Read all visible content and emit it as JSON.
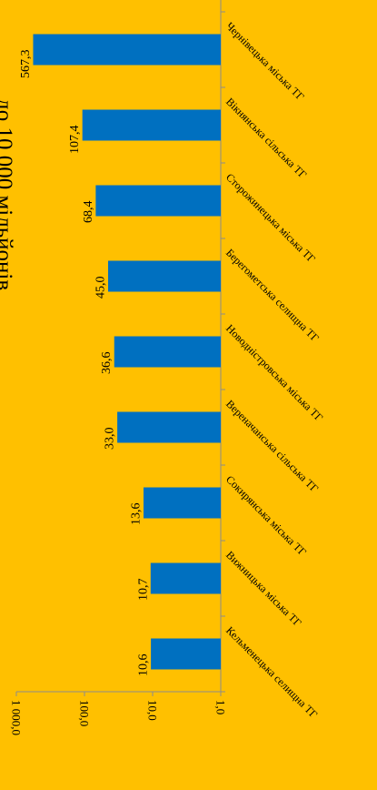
{
  "chart_data": {
    "type": "bar",
    "orientation": "horizontal-bars-rotated-page",
    "scale": "log",
    "title": "до 10 000 мільйонів",
    "categories": [
      "Кельменецька селищна ТГ",
      "Вижницька міська ТГ",
      "Сокирянська міська ТГ",
      "Вереначанська сільська ТГ",
      "Новодністровська міська ТГ",
      "Берегометська селищна ТГ",
      "Сторожинецька міська ТГ",
      "Вікнянська сільська ТГ",
      "Чернівецька міська ТГ"
    ],
    "values": [
      10.6,
      10.7,
      13.6,
      33.0,
      36.6,
      45.0,
      68.4,
      107.4,
      567.3
    ],
    "value_labels": [
      "10,6",
      "10,7",
      "13,6",
      "33,0",
      "36,6",
      "45,0",
      "68,4",
      "107,4",
      "567,3"
    ],
    "axis_ticks": [
      "1,0",
      "10,0",
      "100,0",
      "1 000,0"
    ],
    "axis_tick_values": [
      1,
      10,
      100,
      1000
    ],
    "ylim": [
      1,
      1000
    ],
    "colors": {
      "background": "#FFC000",
      "bar": "#0070C0",
      "axis": "#8C8C8C"
    }
  }
}
